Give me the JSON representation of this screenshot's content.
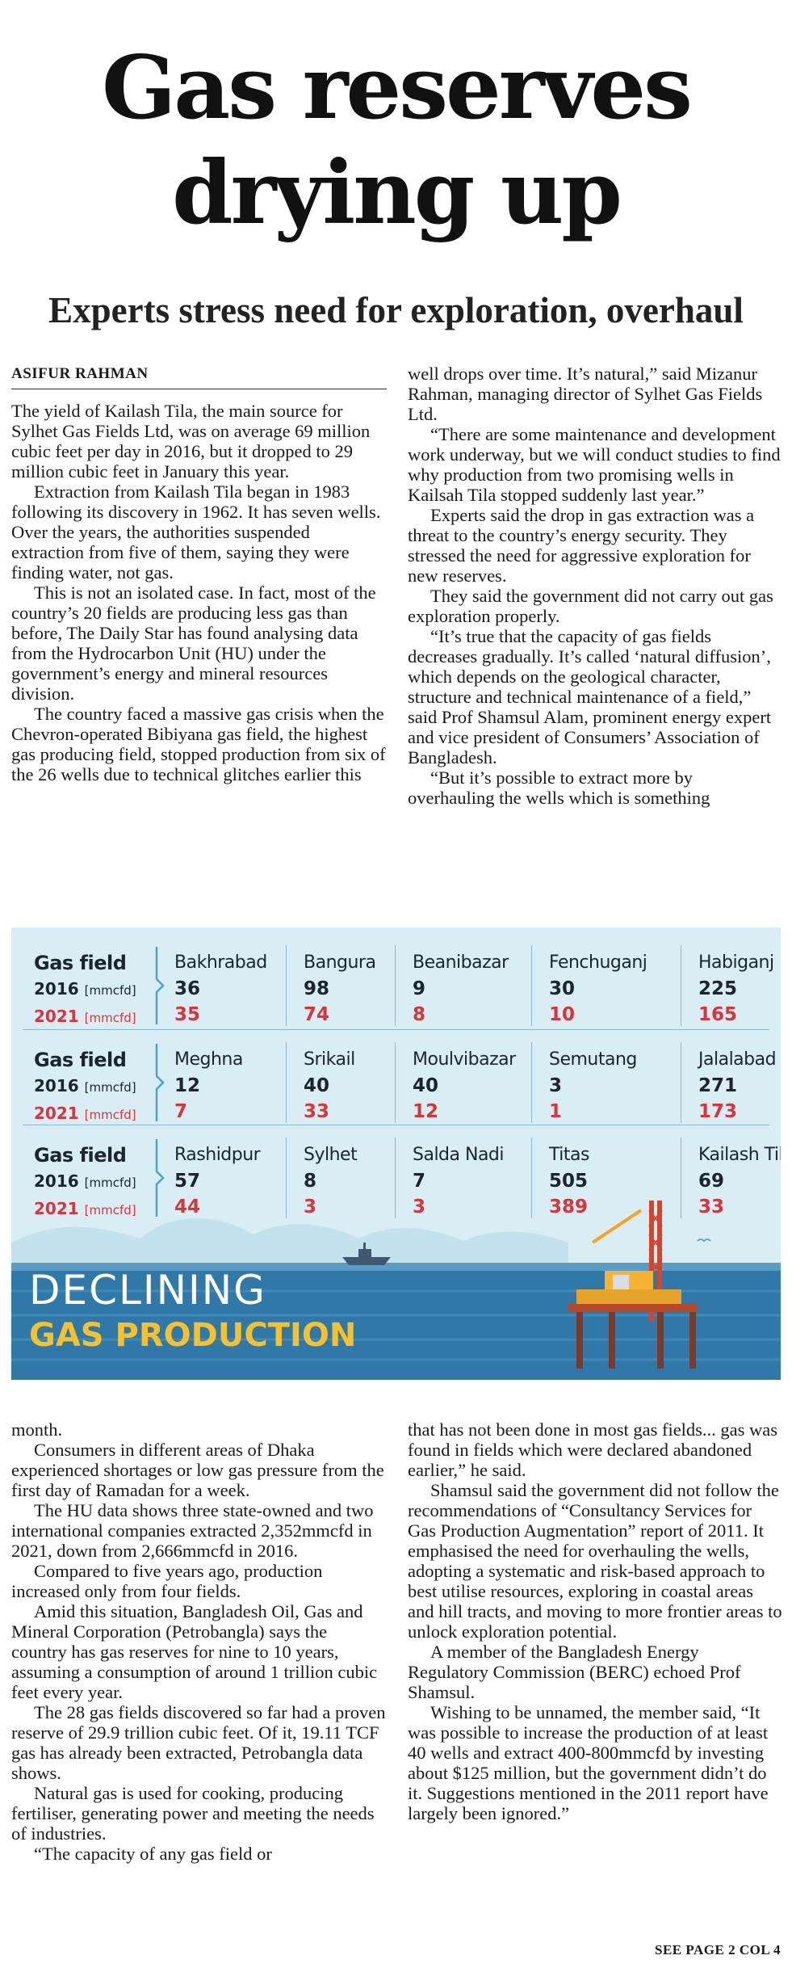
{
  "headline": {
    "line1": "Gas reserves",
    "line2": "drying up"
  },
  "subhead": "Experts stress need for exploration, overhaul",
  "byline": "ASIFUR RAHMAN",
  "top_col1": [
    "The yield of Kailash Tila, the main source for Sylhet Gas Fields Ltd, was on average 69 million cubic feet per day in 2016, but it dropped to 29 million cubic feet in January this year.",
    "Extraction from Kailash Tila began in 1983 following its discovery in 1962. It has seven wells. Over the years, the authorities suspended extraction from five of them, saying they were finding water, not gas.",
    "This is not an isolated case. In fact, most of the country’s 20 fields are producing less gas than before, The Daily Star has found analysing data from the Hydrocarbon Unit (HU) under the government’s energy and mineral resources division.",
    "The country faced a massive gas crisis when the Chevron-operated Bibiyana gas field, the highest gas producing field, stopped production from six of the 26 wells due to technical glitches earlier this"
  ],
  "top_col2": [
    "well drops over time. It’s natural,” said Mizanur Rahman, managing director of Sylhet Gas Fields Ltd.",
    "“There are some maintenance and development work underway, but we will conduct studies to find why production from two promising wells in Kailsah Tila stopped suddenly last year.”",
    "Experts said the drop in gas extraction was a threat to the country’s energy security. They stressed the need for aggressive exploration for new reserves.",
    "They said the government did not carry out gas exploration properly.",
    "“It’s true that the capacity of gas fields decreases gradually. It’s called ‘natural diffusion’, which depends on the geological character, structure and technical maintenance of a field,” said Prof Shamsul Alam, prominent energy expert and vice president of Consumers’ Association of Bangladesh.",
    "“But it’s possible to extract more by overhauling the wells which is something"
  ],
  "bottom_col1": [
    "month.",
    "Consumers in different areas of Dhaka experienced shortages or low gas pressure from the first day of Ramadan for a week.",
    "The HU data shows three state-owned and two international companies extracted 2,352mmcfd in 2021, down from 2,666mmcfd in 2016.",
    "Compared to five years ago, production increased only from four fields.",
    "Amid this situation, Bangladesh Oil, Gas and Mineral Corporation (Petrobangla) says the country has gas reserves for nine to 10 years, assuming a consumption of around 1 trillion cubic feet every year.",
    "The 28 gas fields discovered so far had a proven reserve of 29.9 trillion cubic feet. Of it, 19.11 TCF gas has already been extracted, Petrobangla data shows.",
    "Natural gas is used for cooking, producing fertiliser, generating power and meeting the needs of industries.",
    "“The capacity of any gas field or"
  ],
  "bottom_col2": [
    "that has not been done in most gas fields... gas was found in fields which were declared abandoned earlier,” he said.",
    "Shamsul said the government did not follow the recommendations of “Consultancy Services for Gas Production Augmentation” report of 2011. It emphasised the need for overhauling the wells, adopting a systematic and risk-based approach to best utilise resources, exploring in coastal areas and hill tracts, and moving to more frontier areas to unlock exploration potential.",
    "A member of the Bangladesh Energy Regulatory Commission (BERC) echoed Prof Shamsul.",
    "Wishing to be unnamed, the member said, “It was possible to increase the production of at least 40 wells and extract 400-800mmcfd by investing about $125 million, but the government didn’t do it. Suggestions mentioned in the 2011 report have largely been ignored.”"
  ],
  "footer": "SEE PAGE 2 COL 4",
  "infographic": {
    "legend": {
      "field": "Gas field",
      "y2016": "2016",
      "y2021": "2021",
      "unit": "[mmcfd]"
    },
    "title1": "DECLINING",
    "title2": "GAS PRODUCTION",
    "colors": {
      "bg": "#d9eef4",
      "y2016": "#1b2430",
      "y2021": "#d8343b",
      "accent": "#f6c12c"
    },
    "rows": [
      [
        {
          "name": "Bakhrabad",
          "v2016": "36",
          "v2021": "35"
        },
        {
          "name": "Bangura",
          "v2016": "98",
          "v2021": "74"
        },
        {
          "name": "Beanibazar",
          "v2016": "9",
          "v2021": "8"
        },
        {
          "name": "Fenchuganj",
          "v2016": "30",
          "v2021": "10"
        },
        {
          "name": "Habiganj",
          "v2016": "225",
          "v2021": "165"
        }
      ],
      [
        {
          "name": "Meghna",
          "v2016": "12",
          "v2021": "7"
        },
        {
          "name": "Srikail",
          "v2016": "40",
          "v2021": "33"
        },
        {
          "name": "Moulvibazar",
          "v2016": "40",
          "v2021": "12"
        },
        {
          "name": "Semutang",
          "v2016": "3",
          "v2021": "1"
        },
        {
          "name": "Jalalabad",
          "v2016": "271",
          "v2021": "173"
        }
      ],
      [
        {
          "name": "Rashidpur",
          "v2016": "57",
          "v2021": "44"
        },
        {
          "name": "Sylhet",
          "v2016": "8",
          "v2021": "3"
        },
        {
          "name": "Salda Nadi",
          "v2016": "7",
          "v2021": "3"
        },
        {
          "name": "Titas",
          "v2016": "505",
          "v2021": "389"
        },
        {
          "name": "Kailash Tila",
          "v2016": "69",
          "v2021": "33"
        }
      ]
    ]
  }
}
